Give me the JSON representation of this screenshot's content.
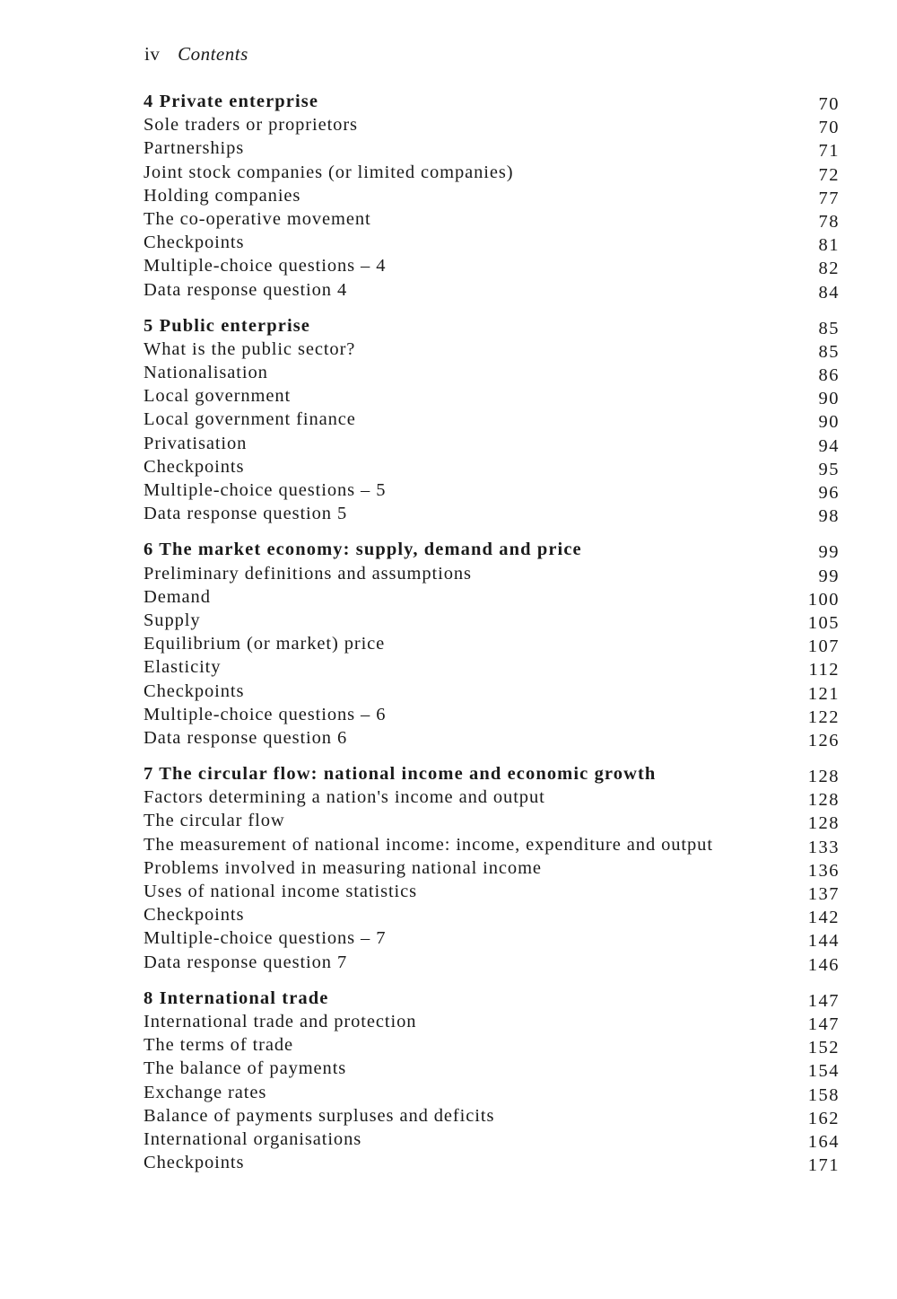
{
  "header": {
    "page": "iv",
    "title": "Contents"
  },
  "sections": [
    {
      "heading": "4  Private enterprise",
      "page": "70",
      "items": [
        {
          "title": "Sole traders or proprietors",
          "page": "70"
        },
        {
          "title": "Partnerships",
          "page": "71"
        },
        {
          "title": "Joint stock companies (or limited companies)",
          "page": "72"
        },
        {
          "title": "Holding companies",
          "page": "77"
        },
        {
          "title": "The co-operative movement",
          "page": "78"
        },
        {
          "title": "Checkpoints",
          "page": "81"
        },
        {
          "title": "Multiple-choice questions – 4",
          "page": "82"
        },
        {
          "title": "Data response question 4",
          "page": "84"
        }
      ]
    },
    {
      "heading": "5  Public enterprise",
      "page": "85",
      "items": [
        {
          "title": "What is the public sector?",
          "page": "85"
        },
        {
          "title": "Nationalisation",
          "page": "86"
        },
        {
          "title": "Local government",
          "page": "90"
        },
        {
          "title": "Local government finance",
          "page": "90"
        },
        {
          "title": "Privatisation",
          "page": "94"
        },
        {
          "title": "Checkpoints",
          "page": "95"
        },
        {
          "title": "Multiple-choice questions – 5",
          "page": "96"
        },
        {
          "title": "Data response question 5",
          "page": "98"
        }
      ]
    },
    {
      "heading": "6  The market economy: supply, demand and price",
      "page": "99",
      "items": [
        {
          "title": "Preliminary definitions and assumptions",
          "page": "99"
        },
        {
          "title": "Demand",
          "page": "100"
        },
        {
          "title": "Supply",
          "page": "105"
        },
        {
          "title": "Equilibrium (or market) price",
          "page": "107"
        },
        {
          "title": "Elasticity",
          "page": "112"
        },
        {
          "title": "Checkpoints",
          "page": "121"
        },
        {
          "title": "Multiple-choice questions – 6",
          "page": "122"
        },
        {
          "title": "Data response question 6",
          "page": "126"
        }
      ]
    },
    {
      "heading": "7  The circular flow: national income and economic growth",
      "page": "128",
      "items": [
        {
          "title": "Factors determining a nation's income and output",
          "page": "128"
        },
        {
          "title": "The circular flow",
          "page": "128"
        },
        {
          "title": "The measurement of national income: income, expenditure and output",
          "page": "133"
        },
        {
          "title": "Problems involved in measuring national income",
          "page": "136"
        },
        {
          "title": "Uses of national income statistics",
          "page": "137"
        },
        {
          "title": "Checkpoints",
          "page": "142"
        },
        {
          "title": "Multiple-choice questions – 7",
          "page": "144"
        },
        {
          "title": "Data response question 7",
          "page": "146"
        }
      ]
    },
    {
      "heading": "8  International trade",
      "page": "147",
      "items": [
        {
          "title": "International trade and protection",
          "page": "147"
        },
        {
          "title": "The terms of trade",
          "page": "152"
        },
        {
          "title": "The balance of payments",
          "page": "154"
        },
        {
          "title": "Exchange rates",
          "page": "158"
        },
        {
          "title": "Balance of payments surpluses and deficits",
          "page": "162"
        },
        {
          "title": "International organisations",
          "page": "164"
        },
        {
          "title": "Checkpoints",
          "page": "171"
        }
      ]
    }
  ]
}
